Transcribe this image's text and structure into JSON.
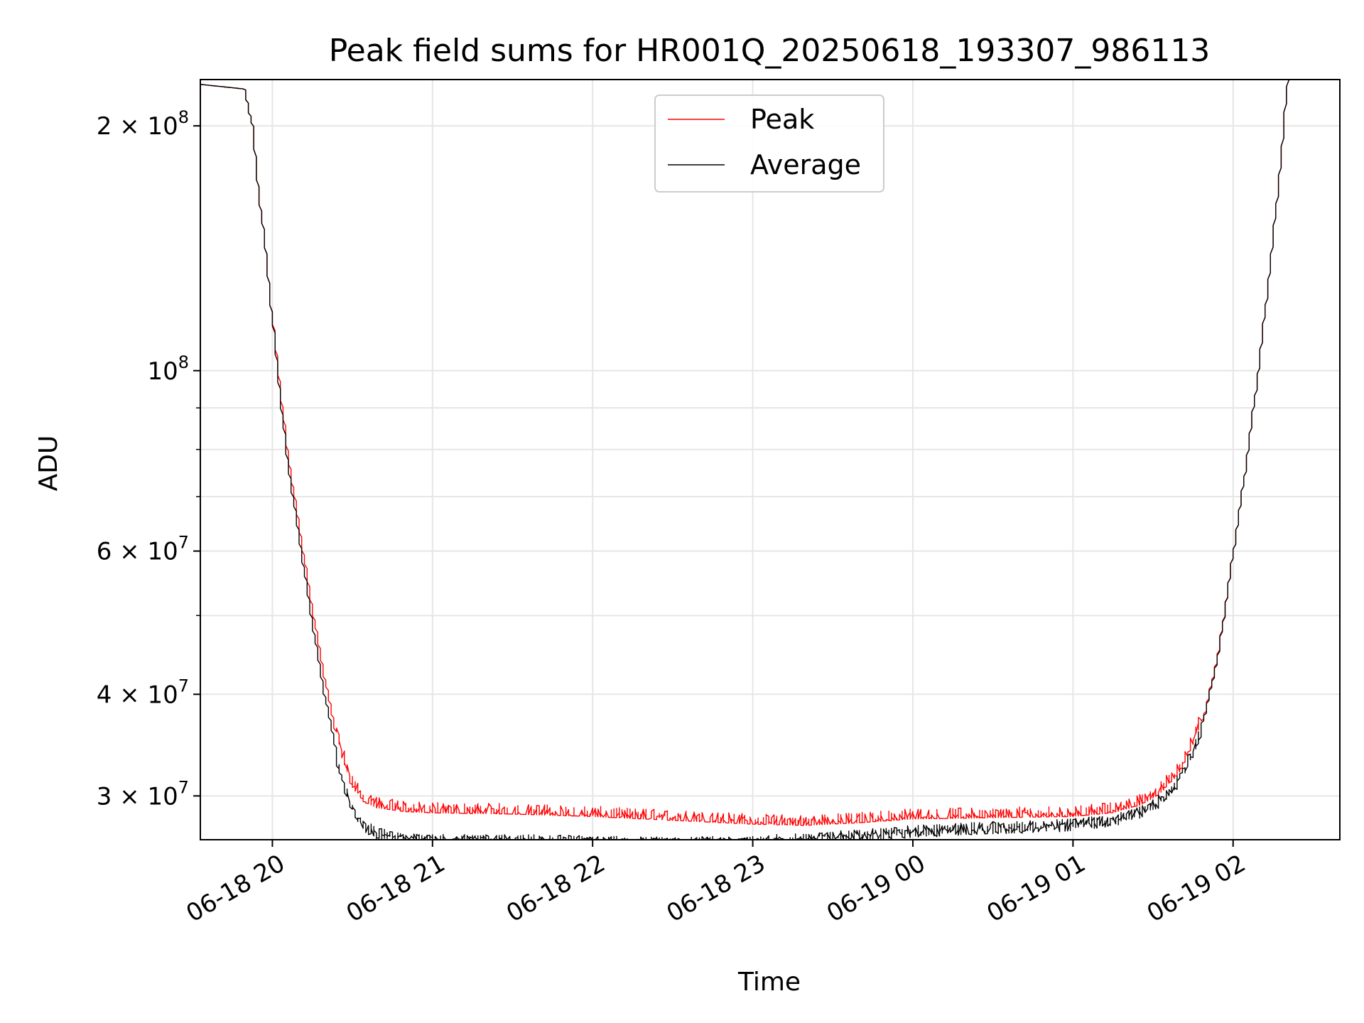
{
  "chart_data": {
    "type": "line",
    "title": "Peak field sums for HR001Q_20250618_193307_986113",
    "xlabel": "Time",
    "ylabel": "ADU",
    "y_scale": "log",
    "xlim": [
      "2025-06-18 19:33",
      "2025-06-19 02:40"
    ],
    "ylim": [
      26500000,
      228000000
    ],
    "grid": true,
    "legend_position": "top-center",
    "x_ticks": [
      {
        "value": "2025-06-18 20:00",
        "label": "06-18 20"
      },
      {
        "value": "2025-06-18 21:00",
        "label": "06-18 21"
      },
      {
        "value": "2025-06-18 22:00",
        "label": "06-18 22"
      },
      {
        "value": "2025-06-18 23:00",
        "label": "06-18 23"
      },
      {
        "value": "2025-06-19 00:00",
        "label": "06-19 00"
      },
      {
        "value": "2025-06-19 01:00",
        "label": "06-19 01"
      },
      {
        "value": "2025-06-19 02:00",
        "label": "06-19 02"
      }
    ],
    "y_ticks": [
      {
        "value": 30000000,
        "mant": "3",
        "exp": "7"
      },
      {
        "value": 40000000,
        "mant": "4",
        "exp": "7"
      },
      {
        "value": 60000000,
        "mant": "6",
        "exp": "7"
      },
      {
        "value": 100000000,
        "mant": "",
        "exp": "8"
      },
      {
        "value": 200000000,
        "mant": "2",
        "exp": "8"
      }
    ],
    "series": [
      {
        "name": "Peak",
        "color": "#ff0000",
        "x": [
          "2025-06-18 19:33",
          "2025-06-18 19:50",
          "2025-06-18 19:53",
          "2025-06-18 19:55",
          "2025-06-18 19:58",
          "2025-06-18 20:00",
          "2025-06-18 20:03",
          "2025-06-18 20:06",
          "2025-06-18 20:10",
          "2025-06-18 20:15",
          "2025-06-18 20:20",
          "2025-06-18 20:25",
          "2025-06-18 20:30",
          "2025-06-18 20:35",
          "2025-06-18 20:40",
          "2025-06-18 20:50",
          "2025-06-18 21:00",
          "2025-06-18 21:30",
          "2025-06-18 22:00",
          "2025-06-18 22:30",
          "2025-06-18 23:00",
          "2025-06-18 23:20",
          "2025-06-18 23:40",
          "2025-06-19 00:00",
          "2025-06-19 00:30",
          "2025-06-19 01:00",
          "2025-06-19 01:15",
          "2025-06-19 01:25",
          "2025-06-19 01:32",
          "2025-06-19 01:40",
          "2025-06-19 01:45",
          "2025-06-19 01:50",
          "2025-06-19 01:55",
          "2025-06-19 02:00",
          "2025-06-19 02:05",
          "2025-06-19 02:10",
          "2025-06-19 02:15",
          "2025-06-19 02:19",
          "2025-06-19 02:21",
          "2025-06-19 02:40"
        ],
        "y": [
          225000000,
          222000000,
          200000000,
          170000000,
          140000000,
          120000000,
          98000000,
          80000000,
          66000000,
          52000000,
          42000000,
          35000000,
          31000000,
          29500000,
          29000000,
          28700000,
          28600000,
          28500000,
          28300000,
          28000000,
          27700000,
          27600000,
          27800000,
          28100000,
          28200000,
          28300000,
          28600000,
          29200000,
          30000000,
          32000000,
          34500000,
          38000000,
          45000000,
          58000000,
          75000000,
          100000000,
          140000000,
          190000000,
          228000000,
          228000000
        ]
      },
      {
        "name": "Average",
        "color": "#000000",
        "x": [
          "2025-06-18 19:33",
          "2025-06-18 19:50",
          "2025-06-18 19:53",
          "2025-06-18 19:55",
          "2025-06-18 19:58",
          "2025-06-18 20:00",
          "2025-06-18 20:03",
          "2025-06-18 20:06",
          "2025-06-18 20:10",
          "2025-06-18 20:15",
          "2025-06-18 20:20",
          "2025-06-18 20:25",
          "2025-06-18 20:30",
          "2025-06-18 20:35",
          "2025-06-18 20:40",
          "2025-06-18 20:50",
          "2025-06-18 21:00",
          "2025-06-18 21:30",
          "2025-06-18 22:00",
          "2025-06-18 22:30",
          "2025-06-18 23:00",
          "2025-06-18 23:20",
          "2025-06-18 23:40",
          "2025-06-19 00:00",
          "2025-06-19 00:30",
          "2025-06-19 01:00",
          "2025-06-19 01:15",
          "2025-06-19 01:25",
          "2025-06-19 01:32",
          "2025-06-19 01:40",
          "2025-06-19 01:45",
          "2025-06-19 01:50",
          "2025-06-19 01:55",
          "2025-06-19 02:00",
          "2025-06-19 02:05",
          "2025-06-19 02:10",
          "2025-06-19 02:15",
          "2025-06-19 02:19",
          "2025-06-19 02:21",
          "2025-06-19 02:40"
        ],
        "y": [
          225000000,
          222000000,
          200000000,
          170000000,
          140000000,
          120000000,
          96000000,
          78000000,
          64000000,
          50000000,
          40000000,
          33500000,
          29500000,
          28000000,
          27400000,
          27000000,
          26900000,
          26900000,
          26800000,
          26700000,
          26800000,
          27000000,
          27300000,
          27600000,
          27900000,
          28100000,
          28500000,
          29100000,
          29900000,
          31800000,
          34300000,
          37800000,
          44800000,
          58000000,
          75000000,
          100000000,
          140000000,
          190000000,
          228000000,
          228000000
        ]
      }
    ]
  }
}
